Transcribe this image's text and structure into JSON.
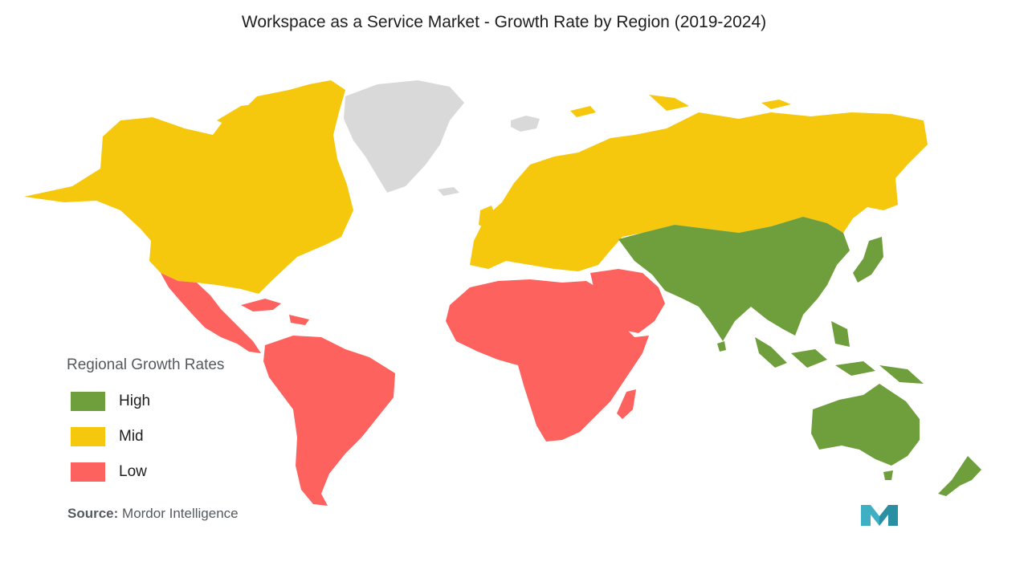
{
  "title": "Workspace as a Service Market  - Growth Rate by Region (2019-2024)",
  "legend": {
    "title": "Regional Growth Rates",
    "items": [
      {
        "label": "High",
        "color": "#6f9e3c"
      },
      {
        "label": "Mid",
        "color": "#f5c80d"
      },
      {
        "label": "Low",
        "color": "#fd625e"
      }
    ]
  },
  "colors": {
    "no_data": "#d9d9d9"
  },
  "source": {
    "prefix": "Source:",
    "text": "Mordor Intelligence"
  },
  "logo": {
    "icon": "mordor-intelligence-logo-icon",
    "color": "#3fb0c4"
  }
}
